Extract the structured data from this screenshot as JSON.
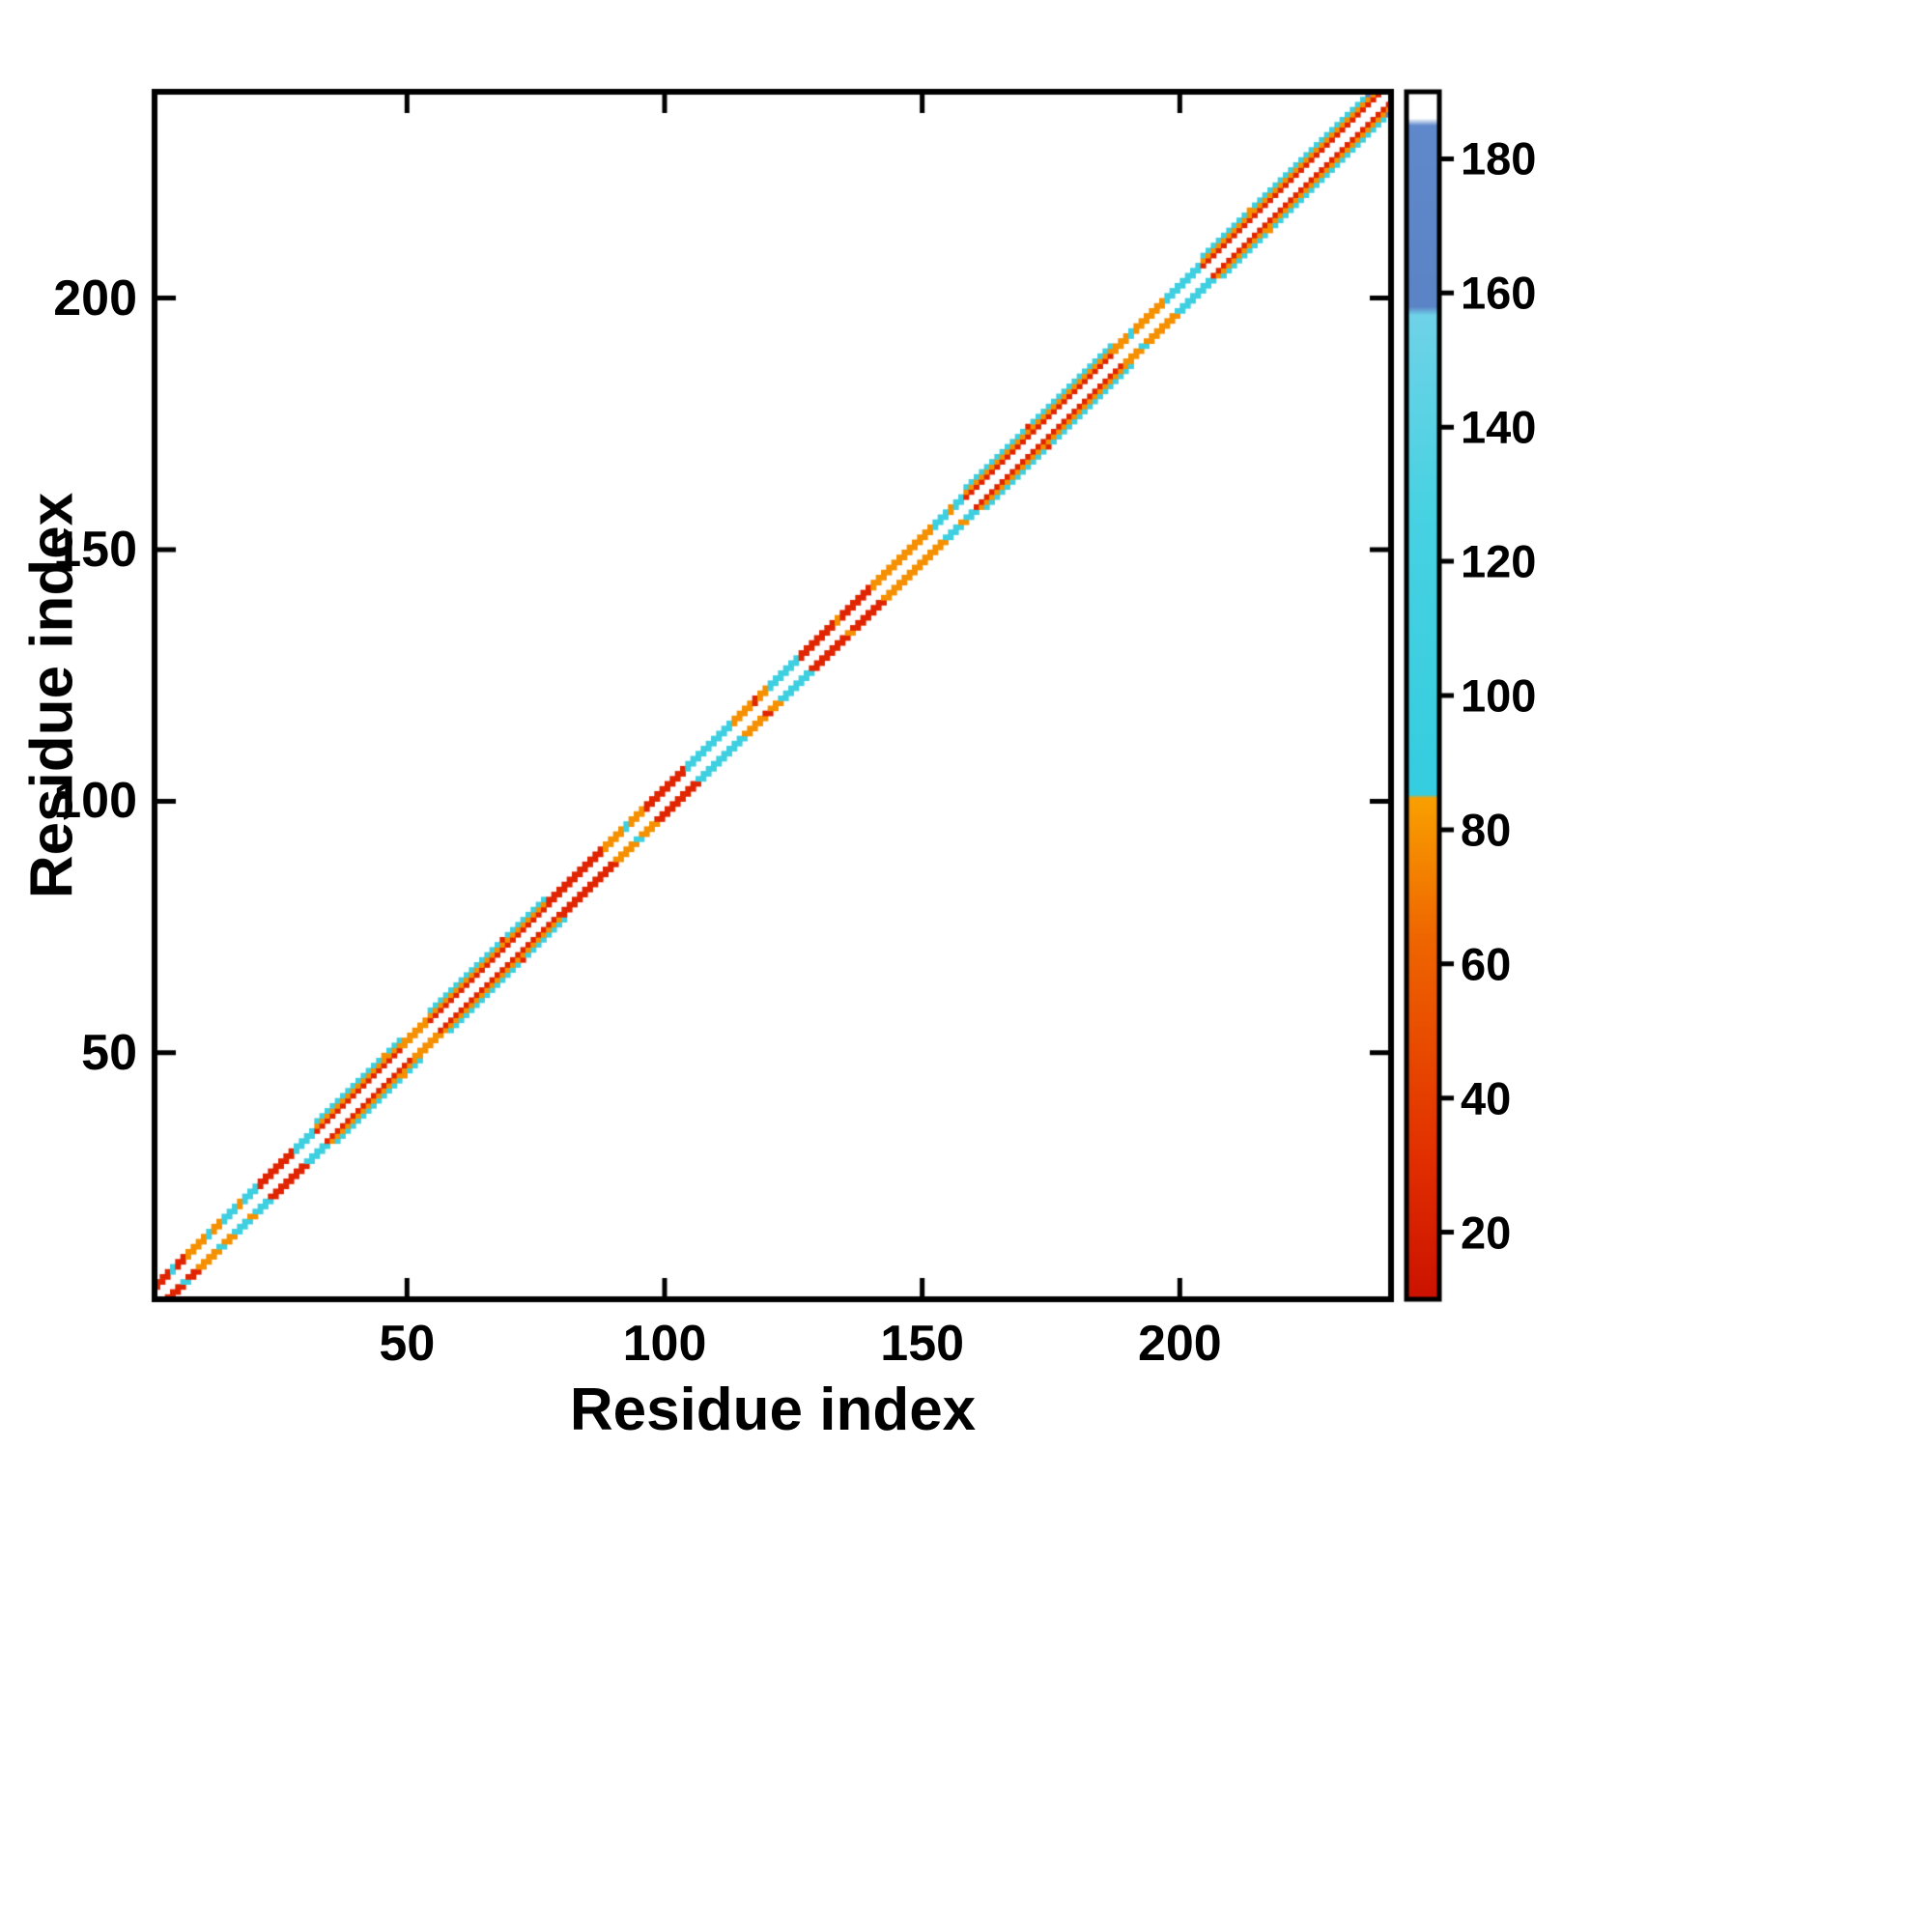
{
  "chart_data": {
    "type": "heatmap",
    "title": "",
    "xlabel": "Residue index",
    "ylabel": "Residue index",
    "xlim": [
      1,
      241
    ],
    "ylim": [
      1,
      241
    ],
    "xticks": [
      50,
      100,
      150,
      200
    ],
    "yticks": [
      50,
      100,
      150,
      200
    ],
    "n_residues": 240,
    "description": "Near-diagonal residue-residue contact map; contacts at sequence offsets >=2 colored by colorbar value; exact diagonal left white",
    "colorbar": {
      "ticks": [
        20,
        40,
        60,
        80,
        100,
        120,
        140,
        160,
        180
      ],
      "vmin": 10,
      "vmax": 190,
      "segments": [
        {
          "upto": 35,
          "color": "#e02500"
        },
        {
          "upto": 85,
          "color": "#f59000"
        },
        {
          "upto": 158,
          "color": "#3ecfe0"
        },
        {
          "upto": 186,
          "color": "#5b84c6"
        },
        {
          "upto": 191,
          "color": "#ffffff"
        }
      ],
      "stops": [
        {
          "at": 0.0,
          "color": "#cc1200"
        },
        {
          "at": 0.12,
          "color": "#e23000"
        },
        {
          "at": 0.3,
          "color": "#ef6600"
        },
        {
          "at": 0.415,
          "color": "#f9a000"
        },
        {
          "at": 0.418,
          "color": "#35cde0"
        },
        {
          "at": 0.65,
          "color": "#47d2e2"
        },
        {
          "at": 0.815,
          "color": "#6fd2e8"
        },
        {
          "at": 0.822,
          "color": "#5b84c6"
        },
        {
          "at": 0.972,
          "color": "#6089cc"
        },
        {
          "at": 0.978,
          "color": "#ffffff"
        },
        {
          "at": 1.0,
          "color": "#ffffff"
        }
      ]
    },
    "sequence_segments": [
      {
        "range": [
          1,
          6
        ],
        "helix": false,
        "value": 20
      },
      {
        "range": [
          7,
          13
        ],
        "helix": false,
        "value": 60
      },
      {
        "range": [
          14,
          20
        ],
        "helix": false,
        "value": 100
      },
      {
        "range": [
          21,
          27
        ],
        "helix": false,
        "value": 20
      },
      {
        "range": [
          28,
          31
        ],
        "helix": false,
        "value": 100
      },
      {
        "range": [
          32,
          48
        ],
        "helix": true,
        "inner": 20,
        "mid": 60,
        "outer": 100
      },
      {
        "range": [
          49,
          53
        ],
        "helix": false,
        "value": 60
      },
      {
        "range": [
          54,
          76
        ],
        "helix": true,
        "inner": 20,
        "mid": 60,
        "outer": 100
      },
      {
        "range": [
          77,
          87
        ],
        "helix": false,
        "value": 20
      },
      {
        "range": [
          88,
          95
        ],
        "helix": false,
        "value": 60
      },
      {
        "range": [
          96,
          103
        ],
        "helix": false,
        "value": 20
      },
      {
        "range": [
          104,
          112
        ],
        "helix": false,
        "value": 100
      },
      {
        "range": [
          113,
          119
        ],
        "helix": false,
        "value": 60
      },
      {
        "range": [
          120,
          125
        ],
        "helix": false,
        "value": 100
      },
      {
        "range": [
          126,
          139
        ],
        "helix": false,
        "value": 20
      },
      {
        "range": [
          140,
          151
        ],
        "helix": false,
        "value": 60
      },
      {
        "range": [
          152,
          157
        ],
        "helix": false,
        "value": 100
      },
      {
        "range": [
          158,
          186
        ],
        "helix": true,
        "inner": 20,
        "mid": 60,
        "outer": 100
      },
      {
        "range": [
          187,
          196
        ],
        "helix": false,
        "value": 60
      },
      {
        "range": [
          197,
          203
        ],
        "helix": false,
        "value": 100
      },
      {
        "range": [
          204,
          240
        ],
        "helix": true,
        "inner": 20,
        "mid": 60,
        "outer": 100
      }
    ],
    "accents": [
      {
        "i": 4,
        "value": 100
      },
      {
        "i": 11,
        "value": 100
      },
      {
        "i": 17,
        "value": 60
      },
      {
        "i": 45,
        "value": 60
      },
      {
        "i": 68,
        "value": 20
      },
      {
        "i": 92,
        "value": 100
      },
      {
        "i": 117,
        "value": 20
      },
      {
        "i": 133,
        "value": 60
      },
      {
        "i": 155,
        "value": 60
      },
      {
        "i": 170,
        "value": 20
      },
      {
        "i": 190,
        "value": 100
      },
      {
        "i": 213,
        "value": 60
      },
      {
        "i": 228,
        "value": 100
      },
      {
        "i": 236,
        "value": 170
      }
    ]
  }
}
